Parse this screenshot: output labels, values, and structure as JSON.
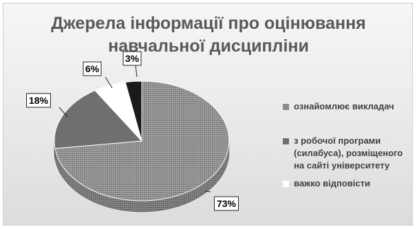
{
  "chart_data": {
    "type": "pie",
    "title": "Джерела інформації про оцінювання навчальної дисципліни",
    "title_lines": [
      "Джерела інформації про оцінювання",
      "навчальної дисципліни"
    ],
    "categories": [
      "ознайомлює викладач",
      "з робочої програми (силабуса), розміщеного на сайті університету",
      "важко відповісти",
      ""
    ],
    "values": [
      73,
      18,
      6,
      3
    ],
    "labels": [
      "73%",
      "18%",
      "6%",
      "3%"
    ],
    "colors": [
      "#8a8a8a",
      "#6f6f6f",
      "#ffffff",
      "#1a1a1a"
    ],
    "legend": {
      "position": "right",
      "entries": [
        {
          "lines": [
            "ознайомлює викладач"
          ],
          "color": "#8a8a8a"
        },
        {
          "lines": [
            "з робочої програми",
            "(силабуса), розміщеного",
            "на сайті університету"
          ],
          "color": "#6f6f6f"
        },
        {
          "lines": [
            "важко відповісти"
          ],
          "color": "#ffffff"
        }
      ]
    }
  }
}
